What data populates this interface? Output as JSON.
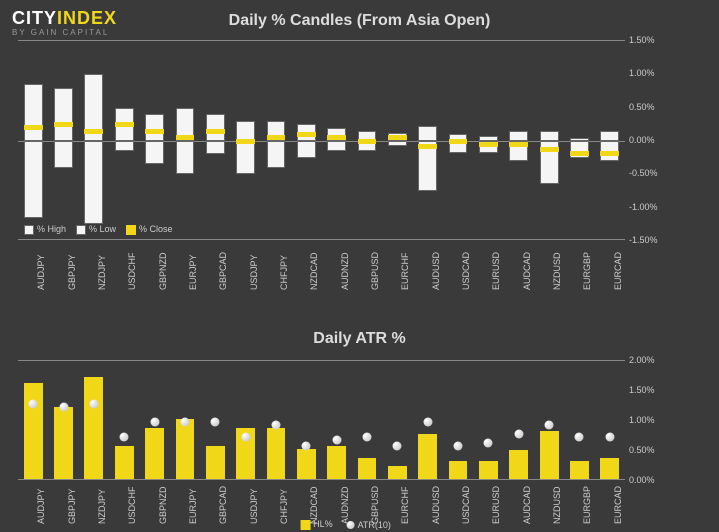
{
  "brand": {
    "name_part1": "CITY",
    "name_part2": "INDEX",
    "subtitle": "BY GAIN CAPITAL",
    "color_part1": "#ffffff",
    "color_part2": "#f0d818"
  },
  "background_color": "#3a3a3a",
  "chart1": {
    "title": "Daily % Candles (From Asia Open)",
    "type": "candle-bar",
    "ylim": [
      -1.5,
      1.5
    ],
    "yticks": [
      -1.5,
      -1.0,
      -0.5,
      0.0,
      0.5,
      1.0,
      1.5
    ],
    "ytick_fmt": "pct2",
    "label_fontsize": 9,
    "title_fontsize": 16,
    "colors": {
      "high": "#f5f5f5",
      "low": "#f5f5f5",
      "close": "#f0d818",
      "grid": "#888888"
    },
    "categories": [
      "AUDJPY",
      "GBPJPY",
      "NZDJPY",
      "USDCHF",
      "GBPNZD",
      "EURJPY",
      "GBPCAD",
      "USDJPY",
      "CHFJPY",
      "NZDCAD",
      "AUDNZD",
      "GBPUSD",
      "EURCHF",
      "AUDUSD",
      "USDCAD",
      "EURUSD",
      "AUDCAD",
      "NZDUSD",
      "EURGBP",
      "EURCAD"
    ],
    "high": [
      0.85,
      0.8,
      1.0,
      0.5,
      0.4,
      0.5,
      0.4,
      0.3,
      0.3,
      0.25,
      0.2,
      0.15,
      0.12,
      0.22,
      0.1,
      0.08,
      0.15,
      0.15,
      0.05,
      0.15
    ],
    "low": [
      -1.15,
      -0.4,
      -1.25,
      -0.15,
      -0.35,
      -0.5,
      -0.2,
      -0.5,
      -0.4,
      -0.25,
      -0.15,
      -0.15,
      -0.08,
      -0.75,
      -0.18,
      -0.18,
      -0.3,
      -0.65,
      -0.25,
      -0.3
    ],
    "close": [
      0.2,
      0.25,
      0.15,
      0.25,
      0.15,
      0.05,
      0.15,
      0.0,
      0.05,
      0.1,
      0.05,
      0.0,
      0.05,
      -0.08,
      0.0,
      -0.05,
      -0.05,
      -0.12,
      -0.18,
      -0.18
    ],
    "legend": [
      "% High",
      "% Low",
      "% Close"
    ]
  },
  "chart2": {
    "title": "Daily ATR %",
    "type": "bar-with-markers",
    "ylim": [
      0.0,
      2.0
    ],
    "yticks": [
      0.0,
      0.5,
      1.0,
      1.5,
      2.0
    ],
    "ytick_fmt": "pct2",
    "label_fontsize": 9,
    "title_fontsize": 16,
    "colors": {
      "bar": "#f0d818",
      "marker": "#dddddd",
      "grid": "#888888"
    },
    "categories": [
      "AUDJPY",
      "GBPJPY",
      "NZDJPY",
      "USDCHF",
      "GBPNZD",
      "EURJPY",
      "GBPCAD",
      "USDJPY",
      "CHFJPY",
      "NZDCAD",
      "AUDNZD",
      "GBPUSD",
      "EURCHF",
      "AUDUSD",
      "USDCAD",
      "EURUSD",
      "AUDCAD",
      "NZDUSD",
      "EURGBP",
      "EURCAD"
    ],
    "hl": [
      1.6,
      1.2,
      1.7,
      0.55,
      0.85,
      1.0,
      0.55,
      0.85,
      0.85,
      0.5,
      0.55,
      0.35,
      0.22,
      0.75,
      0.3,
      0.3,
      0.48,
      0.8,
      0.3,
      0.35
    ],
    "atr": [
      1.25,
      1.2,
      1.25,
      0.7,
      0.95,
      0.95,
      0.95,
      0.7,
      0.9,
      0.55,
      0.65,
      0.7,
      0.55,
      0.95,
      0.55,
      0.6,
      0.75,
      0.9,
      0.7,
      0.7
    ],
    "legend": [
      "HL%",
      "ATR(10)"
    ]
  }
}
